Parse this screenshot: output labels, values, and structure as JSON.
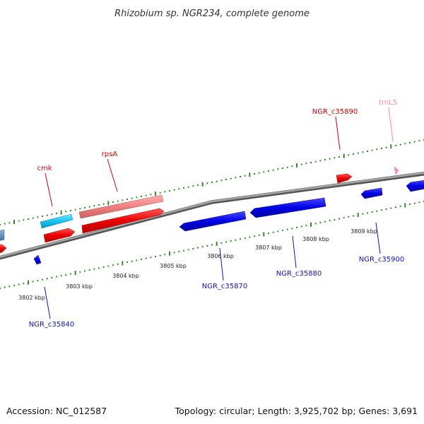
{
  "title": "Rhizobium sp. NGR234, complete genome",
  "footer": {
    "accession": "Accession: NC_012587",
    "topology": "Topology: circular; Length: 3,925,702 bp; Genes: 3,691"
  },
  "colors": {
    "backbone": "#8a8a8a",
    "tick": "#2e8b22",
    "forward_cds": "#ff0000",
    "reverse_cds": "#0000ee",
    "cmk_feature": "#22c7f0",
    "rpsA_feature": "#f08a8a",
    "trna": "#ff8fc8",
    "forward_label": "#d00000",
    "reverse_label": "#1010c0",
    "trna_label": "#ff80b0"
  },
  "scale_labels": [
    "3802 kbp",
    "3803 kbp",
    "3804 kbp",
    "3805 kbp",
    "3806 kbp",
    "3807 kbp",
    "3808 kbp",
    "3809 kbp"
  ],
  "gene_labels": {
    "cmk": "cmk",
    "rpsA": "rpsA",
    "ngr_c35890": "NGR_c35890",
    "trnL5": "trnL5",
    "ngr_c35840": "NGR_c35840",
    "ngr_c35870": "NGR_c35870",
    "ngr_c35880": "NGR_c35880",
    "ngr_c35900": "NGR_c35900"
  }
}
